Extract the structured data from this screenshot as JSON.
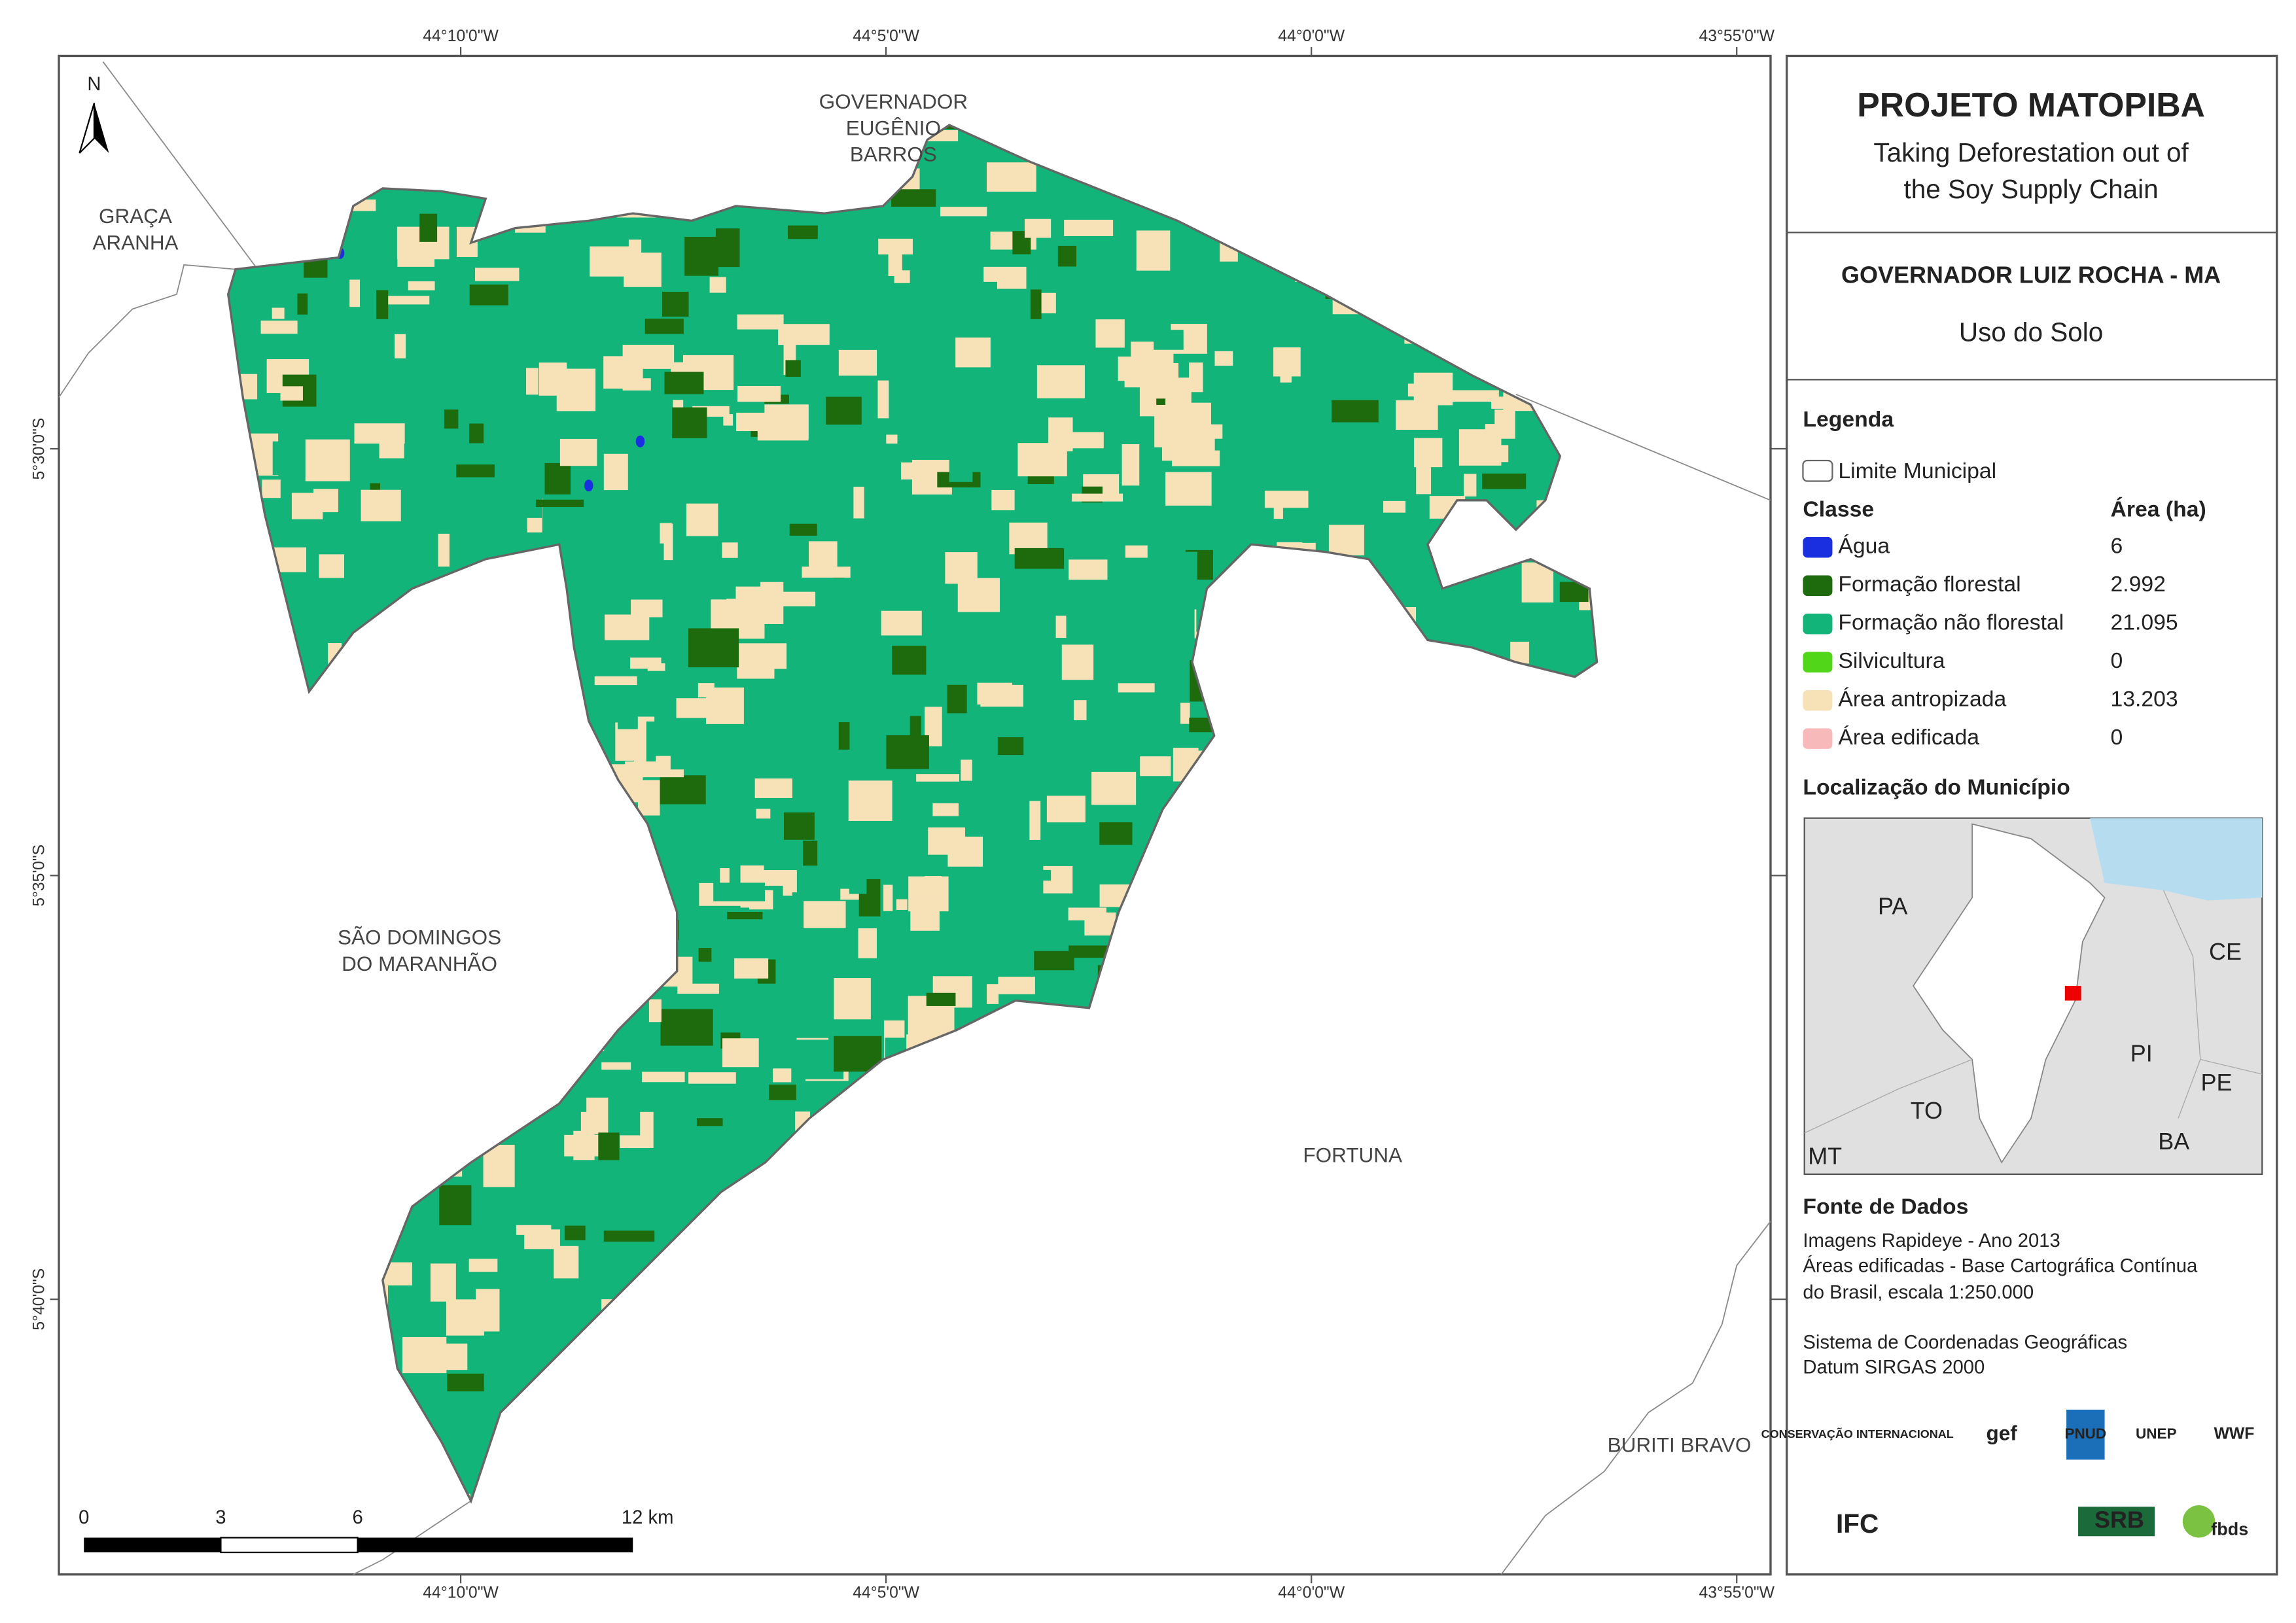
{
  "map": {
    "coordinates": {
      "top": [
        "44°10'0\"W",
        "44°5'0\"W",
        "44°0'0\"W",
        "43°55'0\"W"
      ],
      "bottom": [
        "44°10'0\"W",
        "44°5'0\"W",
        "44°0'0\"W",
        "43°55'0\"W"
      ],
      "left": [
        "5°30'0\"S",
        "5°35'0\"S",
        "5°40'0\"S"
      ]
    },
    "north": "N",
    "place_labels": [
      {
        "lines": [
          "GOVERNADOR",
          "EUGÊNIO",
          "BARROS"
        ]
      },
      {
        "lines": [
          "GRAÇA",
          "ARANHA"
        ]
      },
      {
        "lines": [
          "SÃO DOMINGOS",
          "DO MARANHÃO"
        ]
      },
      {
        "lines": [
          "FORTUNA"
        ]
      },
      {
        "lines": [
          "BURITI BRAVO"
        ]
      }
    ],
    "scale_bar": {
      "labels": [
        "0",
        "3",
        "6",
        "12 km"
      ]
    }
  },
  "panel": {
    "title": "PROJETO MATOPIBA",
    "subtitle": [
      "Taking Deforestation out of",
      "the Soy Supply Chain"
    ],
    "municipality": "GOVERNADOR LUIZ ROCHA - MA",
    "theme": "Uso do Solo",
    "legend": {
      "heading": "Legenda",
      "boundary": "Limite Municipal",
      "class_header": "Classe",
      "area_header": "Área (ha)",
      "classes": [
        {
          "name": "Água",
          "area": "6",
          "color": "#1a2fe0"
        },
        {
          "name": "Formação florestal",
          "area": "2.992",
          "color": "#1d6b0c"
        },
        {
          "name": "Formação não florestal",
          "area": "21.095",
          "color": "#13b47a"
        },
        {
          "name": "Silvicultura",
          "area": "0",
          "color": "#52d61a"
        },
        {
          "name": "Área antropizada",
          "area": "13.203",
          "color": "#f7e2b8"
        },
        {
          "name": "Área edificada",
          "area": "0",
          "color": "#f7b9b9"
        }
      ]
    },
    "location": {
      "heading": "Localização do Município",
      "labels": [
        "PA",
        "CE",
        "PI",
        "TO",
        "PE",
        "BA",
        "MT"
      ]
    },
    "sources": {
      "heading": "Fonte de Dados",
      "lines": [
        "Imagens Rapideye - Ano 2013",
        "Áreas edificadas - Base Cartográfica Contínua",
        "do Brasil, escala 1:250.000",
        "Sistema de Coordenadas Geográficas",
        "Datum SIRGAS 2000"
      ]
    },
    "logos": [
      "CONSERVAÇÃO INTERNACIONAL",
      "gef",
      "PNUD",
      "UNEP",
      "WWF",
      "IFC",
      "SRB",
      "fbds"
    ]
  }
}
